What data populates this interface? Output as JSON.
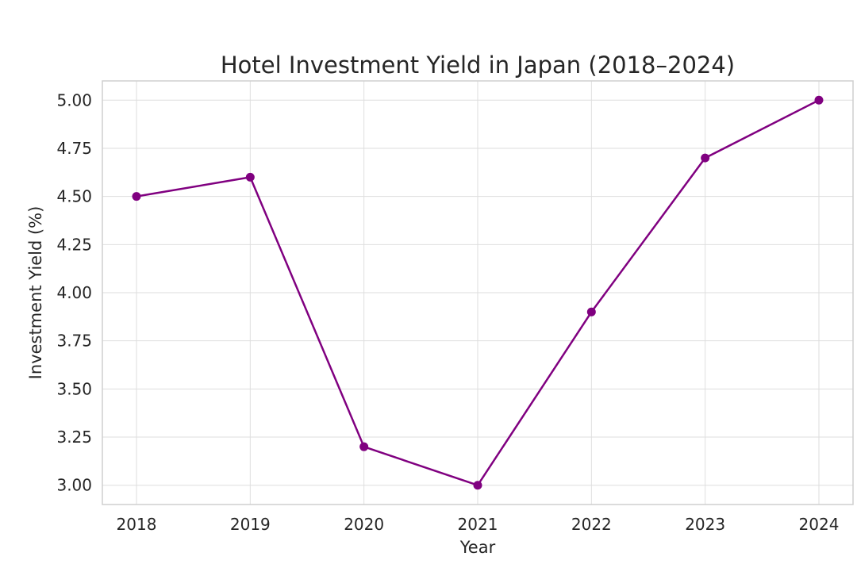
{
  "chart_data": {
    "type": "line",
    "title": "Hotel Investment Yield in Japan (2018–2024)",
    "xlabel": "Year",
    "ylabel": "Investment Yield (%)",
    "x": [
      "2018",
      "2019",
      "2020",
      "2021",
      "2022",
      "2023",
      "2024"
    ],
    "series": [
      {
        "values": [
          4.5,
          4.6,
          3.2,
          3.0,
          3.9,
          4.7,
          5.0
        ],
        "color": "#800080"
      }
    ],
    "ylim": [
      2.9,
      5.1
    ],
    "yticks": [
      "3.00",
      "3.25",
      "3.50",
      "3.75",
      "4.00",
      "4.25",
      "4.50",
      "4.75",
      "5.00"
    ],
    "grid": true,
    "marker": "circle"
  }
}
